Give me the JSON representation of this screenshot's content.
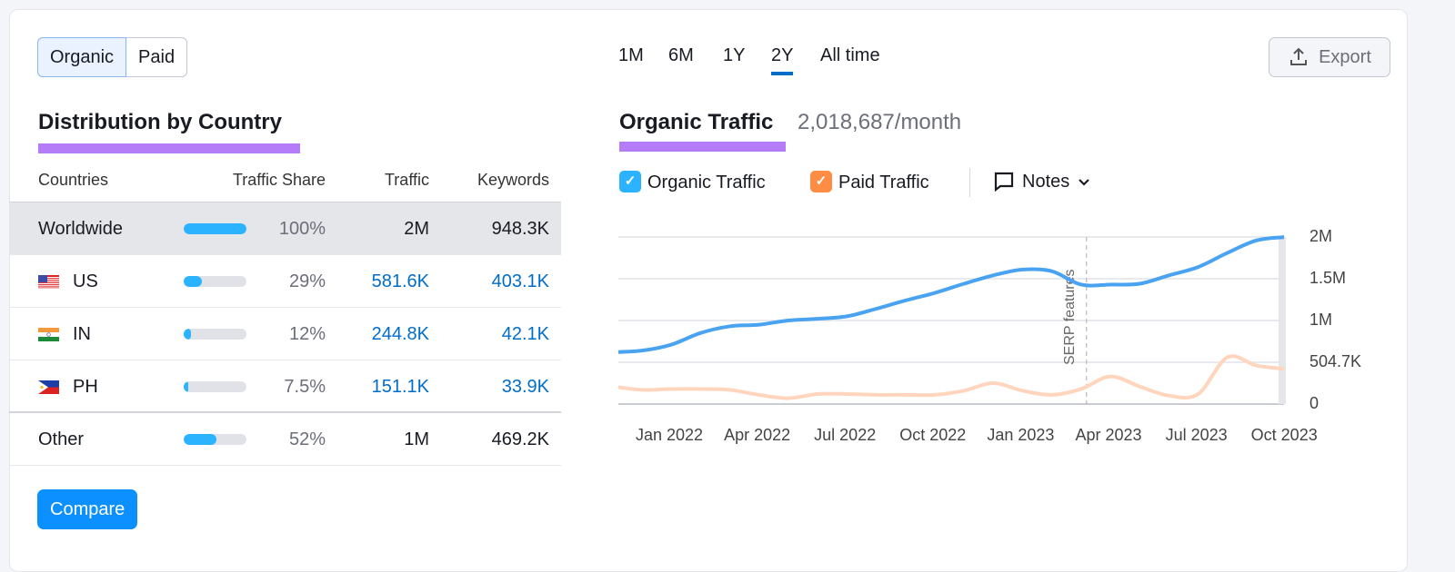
{
  "toggle": {
    "organic": "Organic",
    "paid": "Paid"
  },
  "left": {
    "title": "Distribution by Country",
    "columns": [
      "Countries",
      "Traffic Share",
      "Traffic",
      "Keywords"
    ],
    "rows": [
      {
        "country": "Worldwide",
        "flag": "",
        "share": "100%",
        "share_value": 100,
        "traffic": "2M",
        "keywords": "948.3K"
      },
      {
        "country": "US",
        "flag": "us-flag-icon",
        "share": "29%",
        "share_value": 29,
        "traffic": "581.6K",
        "keywords": "403.1K"
      },
      {
        "country": "IN",
        "flag": "india-flag-icon",
        "share": "12%",
        "share_value": 12,
        "traffic": "244.8K",
        "keywords": "42.1K"
      },
      {
        "country": "PH",
        "flag": "philippines-flag-icon",
        "share": "7.5%",
        "share_value": 7.5,
        "traffic": "151.1K",
        "keywords": "33.9K"
      },
      {
        "country": "Other",
        "flag": "",
        "share": "52%",
        "share_value": 52,
        "traffic": "1M",
        "keywords": "469.2K"
      }
    ],
    "compare": "Compare"
  },
  "periods": [
    "1M",
    "6M",
    "1Y",
    "2Y",
    "All time"
  ],
  "active_period": "2Y",
  "export": "Export",
  "right": {
    "title": "Organic Traffic",
    "value": "2,018,687/month",
    "legend": [
      {
        "label": "Organic Traffic",
        "color": "#2bb3ff"
      },
      {
        "label": "Paid Traffic",
        "color": "#ff8c43"
      }
    ],
    "notes": "Notes"
  },
  "colors": {
    "accent": "#006dca",
    "underline": "#b57cf8",
    "organic_line": "#4aa3f0",
    "paid_line": "#ffd5bd",
    "button": "#0d90ff"
  },
  "chart_data": {
    "type": "line",
    "x": [
      "2021-11",
      "2021-12",
      "2022-01",
      "2022-02",
      "2022-03",
      "2022-04",
      "2022-05",
      "2022-06",
      "2022-07",
      "2022-08",
      "2022-09",
      "2022-10",
      "2022-11",
      "2022-12",
      "2023-01",
      "2023-02",
      "2023-03",
      "2023-04",
      "2023-05",
      "2023-06",
      "2023-07",
      "2023-08",
      "2023-09",
      "2023-10"
    ],
    "series": [
      {
        "name": "Organic Traffic",
        "values": [
          0.62,
          0.64,
          0.71,
          0.85,
          0.93,
          0.95,
          1.0,
          1.02,
          1.05,
          1.14,
          1.24,
          1.33,
          1.44,
          1.54,
          1.61,
          1.59,
          1.43,
          1.43,
          1.44,
          1.54,
          1.64,
          1.81,
          1.96,
          2.0
        ]
      },
      {
        "name": "Paid Traffic",
        "values": [
          0.21,
          0.17,
          0.18,
          0.18,
          0.17,
          0.11,
          0.07,
          0.12,
          0.12,
          0.11,
          0.11,
          0.11,
          0.16,
          0.25,
          0.16,
          0.11,
          0.18,
          0.33,
          0.21,
          0.1,
          0.12,
          0.56,
          0.46,
          0.42
        ]
      }
    ],
    "unit": "millions",
    "ylim": [
      0,
      2
    ],
    "ytick_labels": [
      "2M",
      "1.5M",
      "1M",
      "504.7K",
      "0"
    ],
    "xtick_labels": [
      "Jan 2022",
      "Apr 2022",
      "Jul 2022",
      "Oct 2022",
      "Jan 2023",
      "Apr 2023",
      "Jul 2023",
      "Oct 2023"
    ],
    "annotation": {
      "label": "SERP features",
      "x": "2023-03"
    },
    "grid": true
  }
}
